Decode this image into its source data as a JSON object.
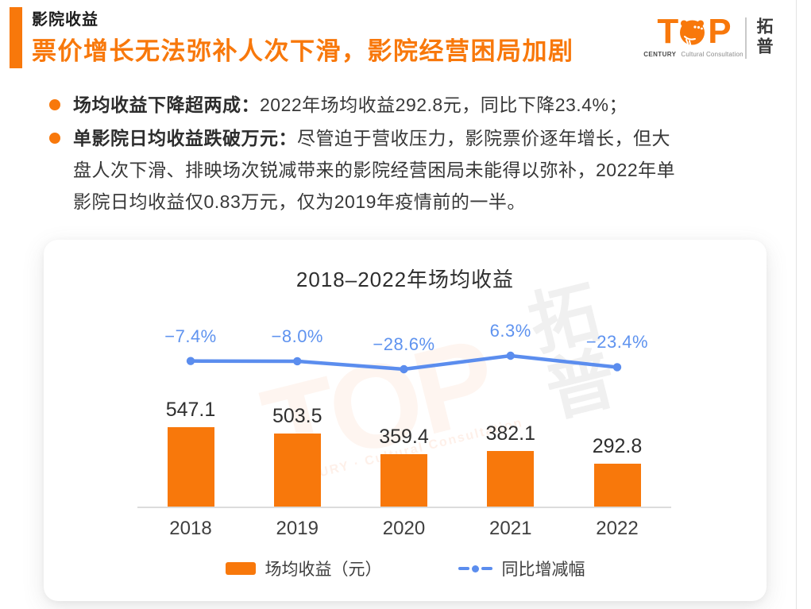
{
  "header": {
    "section_title": "影院收益",
    "headline": "票价增长无法弥补人次下滑，影院经营困局加剧",
    "logo": {
      "letter_t": "T",
      "letter_p": "P",
      "brand": "TOP",
      "tagline_left": "CENTURY",
      "tagline_right": "Cultural Consultation",
      "brand_cn": "拓普"
    }
  },
  "bullets": [
    {
      "bold": "场均收益下降超两成：",
      "text": "2022年场均收益292.8元，同比下降23.4%；"
    },
    {
      "bold": "单影院日均收益跌破万元：",
      "line1_rest": "尽管迫于营收压力，影院票价逐年增长，但大",
      "line2": "盘人次下滑、排映场次锐减带来的影院经营困局未能得以弥补，2022年单",
      "line3": "影院日均收益仅0.83万元，仅为2019年疫情前的一半。"
    }
  ],
  "chart_data": {
    "type": "bar",
    "title": "2018–2022年场均收益",
    "categories": [
      "2018",
      "2019",
      "2020",
      "2021",
      "2022"
    ],
    "series": [
      {
        "name": "场均收益（元）",
        "type": "bar",
        "values": [
          547.1,
          503.5,
          359.4,
          382.1,
          292.8
        ],
        "labels": [
          "547.1",
          "503.5",
          "359.4",
          "382.1",
          "292.8"
        ],
        "color": "#f8780b"
      },
      {
        "name": "同比增减幅",
        "type": "line",
        "values": [
          -7.4,
          -8.0,
          -28.6,
          6.3,
          -23.4
        ],
        "labels": [
          "−7.4%",
          "−8.0%",
          "−28.6%",
          "6.3%",
          "−23.4%"
        ],
        "color": "#5b8dee"
      }
    ],
    "legend": [
      "场均收益（元）",
      "同比增减幅"
    ],
    "xlabel": "",
    "ylabel": "",
    "grid": false,
    "legend_position": "bottom",
    "watermark": {
      "brand": "TOP",
      "tagline": "CENTURY · Cultural Consultation",
      "cn": "拓普"
    }
  },
  "colors": {
    "accent_orange": "#f8780b",
    "line_blue": "#5b8dee",
    "pct_label_blue": "#5f93ef",
    "axis_gray": "#dcdcdc",
    "text_dark": "#2f2f2f"
  }
}
